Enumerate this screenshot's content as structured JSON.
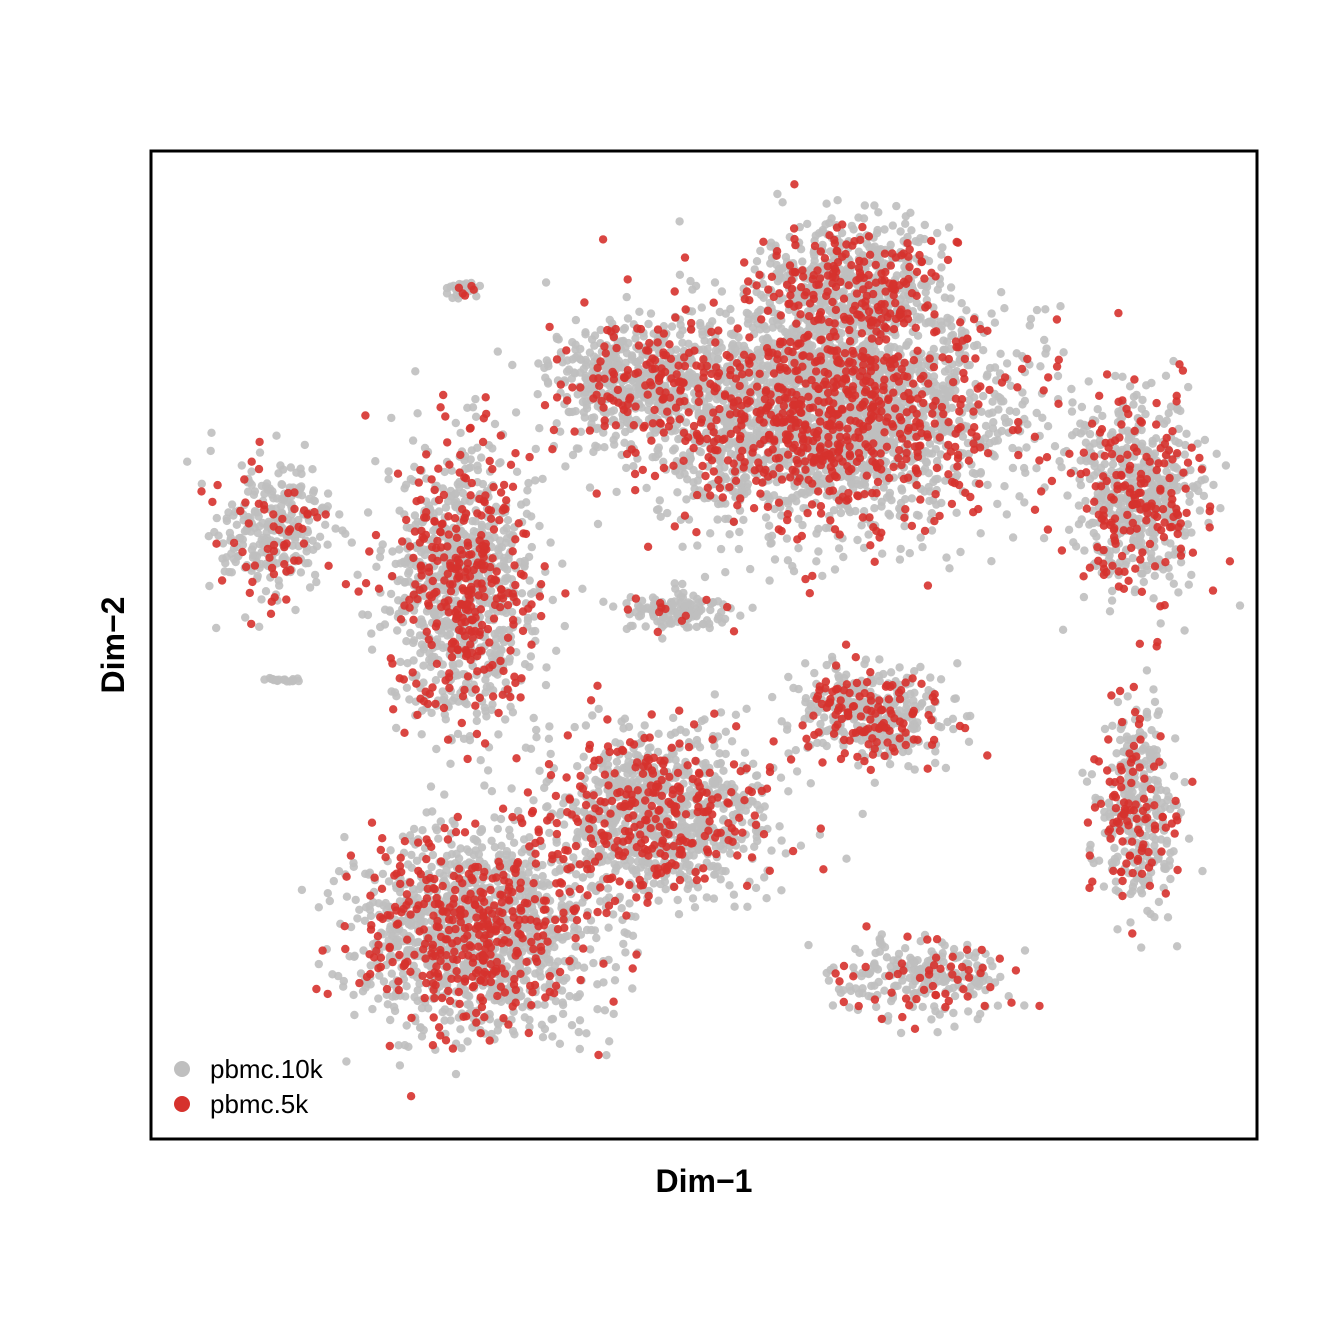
{
  "chart_data": {
    "type": "scatter",
    "title": "",
    "xlabel": "Dim−1",
    "ylabel": "Dim−2",
    "ticks_shown": false,
    "grid": false,
    "legend_position": "bottom-left",
    "xlim": [
      -48,
      44
    ],
    "ylim": [
      -44,
      42
    ],
    "series": [
      {
        "name": "pbmc.10k",
        "color": "#bfbfbf"
      },
      {
        "name": "pbmc.5k",
        "color": "#d6322d"
      }
    ],
    "clusters": [
      {
        "label_shown": false,
        "center": [
          8,
          19
        ],
        "spread": [
          13,
          8
        ],
        "n": 2800,
        "share_5k": 0.25
      },
      {
        "label_shown": false,
        "center": [
          10,
          30
        ],
        "spread": [
          6,
          5
        ],
        "n": 700,
        "share_5k": 0.25
      },
      {
        "label_shown": false,
        "center": [
          -8,
          22
        ],
        "spread": [
          6,
          4
        ],
        "n": 500,
        "share_5k": 0.22
      },
      {
        "label_shown": false,
        "center": [
          34,
          12
        ],
        "spread": [
          4.5,
          7
        ],
        "n": 650,
        "share_5k": 0.26
      },
      {
        "label_shown": false,
        "center": [
          -22,
          4
        ],
        "spread": [
          5,
          10
        ],
        "n": 1100,
        "share_5k": 0.28
      },
      {
        "label_shown": false,
        "center": [
          -21,
          -26
        ],
        "spread": [
          8,
          7
        ],
        "n": 1500,
        "share_5k": 0.25
      },
      {
        "label_shown": false,
        "center": [
          -6,
          -16
        ],
        "spread": [
          8,
          6
        ],
        "n": 1100,
        "share_5k": 0.26
      },
      {
        "label_shown": false,
        "center": [
          12,
          -7
        ],
        "spread": [
          5,
          3.5
        ],
        "n": 450,
        "share_5k": 0.3
      },
      {
        "label_shown": false,
        "center": [
          -38,
          9
        ],
        "spread": [
          4,
          5
        ],
        "n": 320,
        "share_5k": 0.2
      },
      {
        "label_shown": false,
        "center": [
          34,
          -15
        ],
        "spread": [
          3,
          7
        ],
        "n": 380,
        "share_5k": 0.3
      },
      {
        "label_shown": false,
        "center": [
          16,
          -30
        ],
        "spread": [
          6,
          3
        ],
        "n": 260,
        "share_5k": 0.2
      },
      {
        "label_shown": false,
        "center": [
          -22,
          30
        ],
        "spread": [
          0.9,
          0.6
        ],
        "n": 35,
        "share_5k": 0.08
      },
      {
        "label_shown": false,
        "center": [
          -37,
          -4
        ],
        "spread": [
          1.2,
          0.15
        ],
        "n": 18,
        "share_5k": 0
      },
      {
        "label_shown": false,
        "center": [
          -4,
          2
        ],
        "spread": [
          4,
          1.5
        ],
        "n": 140,
        "share_5k": 0.12
      }
    ]
  }
}
